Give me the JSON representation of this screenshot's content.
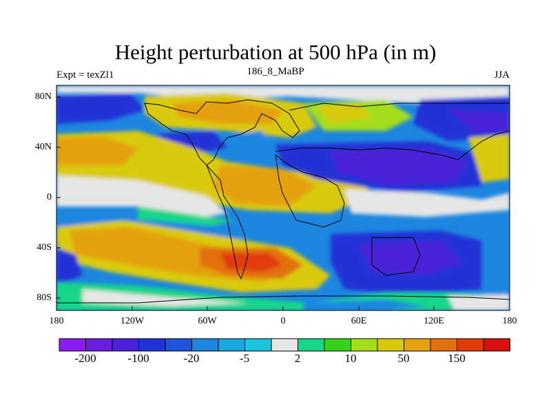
{
  "title": "Height perturbation at 500 hPa (in m)",
  "experiment_label": "Expt = texZl1",
  "case_label": "186_8_MaBP",
  "season_label": "JJA",
  "y_axis_ticks": [
    "80N",
    "40N",
    "0",
    "40S",
    "80S"
  ],
  "x_axis_ticks": [
    "180",
    "120W",
    "60W",
    "0",
    "60E",
    "120E",
    "180"
  ],
  "colorbar": {
    "labels": [
      "-200",
      "-100",
      "-20",
      "-5",
      "2",
      "10",
      "50",
      "150"
    ],
    "colors": [
      "#8a1cf0",
      "#6a1ee0",
      "#4a20d8",
      "#2233d6",
      "#1f55dd",
      "#1d86e0",
      "#1aa6de",
      "#1cc4de",
      "#e6e6e6",
      "#15d689",
      "#35d21a",
      "#a4dd1c",
      "#d9ca10",
      "#e5a10e",
      "#e2700c",
      "#e23b08",
      "#d80e0e"
    ]
  },
  "chart_data": {
    "type": "heatmap",
    "title": "Height perturbation at 500 hPa (in m)",
    "variable": "500 hPa geopotential height perturbation",
    "units": "m",
    "x_range": [
      -180,
      180
    ],
    "y_range": [
      -90,
      90
    ],
    "features": [
      {
        "name": "positive anomaly",
        "region": "South Atlantic / southern South America",
        "approx_max": 150
      },
      {
        "name": "positive anomaly",
        "region": "North America / Greenland",
        "approx_max": 50
      },
      {
        "name": "negative anomaly",
        "region": "Eurasia / Asia 20N-50N",
        "approx_min": -100
      },
      {
        "name": "negative anomaly",
        "region": "Indian Ocean 40S-60S",
        "approx_min": -100
      },
      {
        "name": "negative anomaly",
        "region": "South Pacific 40S-70S",
        "approx_min": -100
      }
    ]
  }
}
